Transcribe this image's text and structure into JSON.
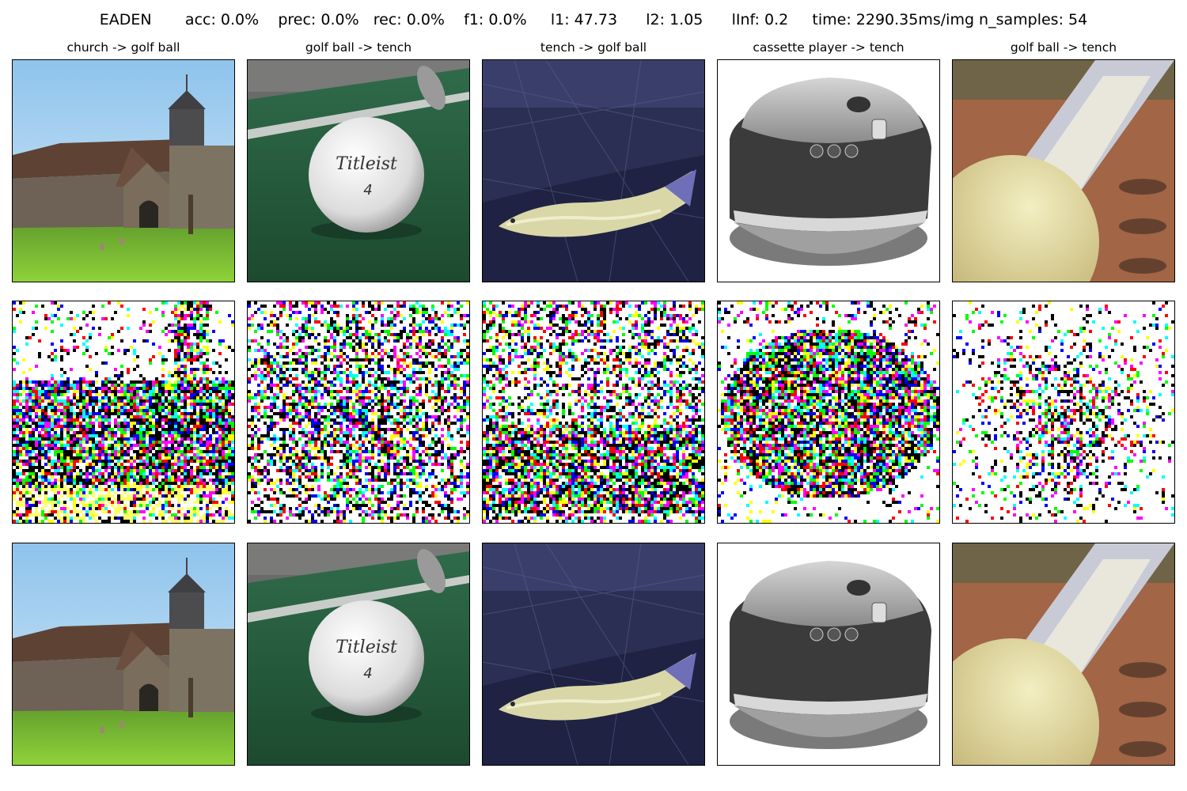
{
  "chart_data": {
    "type": "image_grid",
    "title": "EADEN       acc: 0.0%    prec: 0.0%   rec: 0.0%    f1: 0.0%     l1: 47.73      l2: 1.05      lInf: 0.2     time: 2290.35ms/img n_samples: 54",
    "method": "EADEN",
    "metrics": {
      "acc": "0.0%",
      "prec": "0.0%",
      "rec": "0.0%",
      "f1": "0.0%",
      "l1": 47.73,
      "l2": 1.05,
      "lInf": 0.2,
      "time": "2290.35ms/img",
      "n_samples": 54
    },
    "rows": [
      "original",
      "perturbation",
      "adversarial"
    ],
    "columns": [
      {
        "title": "church -> golf ball",
        "source": "church",
        "target": "golf ball"
      },
      {
        "title": "golf ball -> tench",
        "source": "golf ball",
        "target": "tench"
      },
      {
        "title": "tench -> golf ball",
        "source": "tench",
        "target": "golf ball"
      },
      {
        "title": "cassette player -> tench",
        "source": "cassette player",
        "target": "tench"
      },
      {
        "title": "golf ball -> tench",
        "source": "golf ball",
        "target": "tench"
      }
    ],
    "image_text": {
      "golf_ball_brand": "Titleist",
      "golf_ball_number": "4"
    }
  }
}
